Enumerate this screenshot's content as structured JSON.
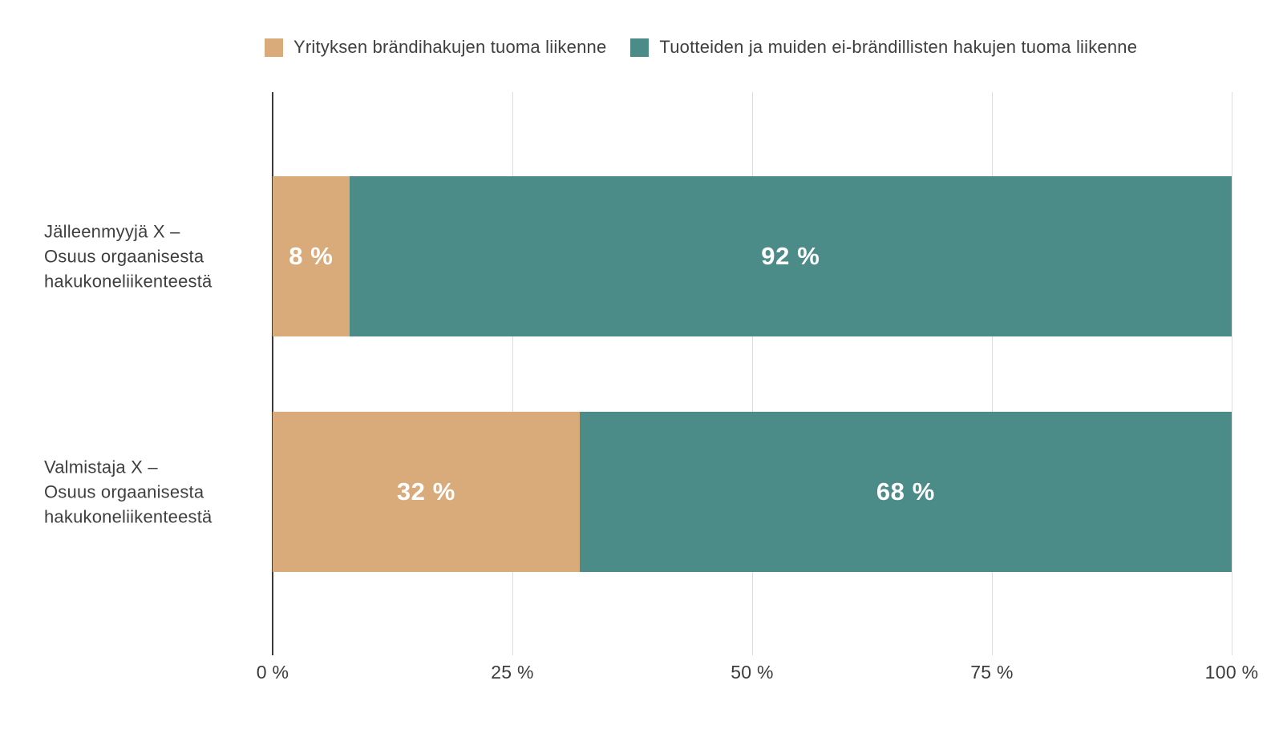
{
  "colors": {
    "background": "#ffffff",
    "brand_tan": "#d9ab7b",
    "brand_teal": "#4b8c89",
    "gridline": "#dcdcdc",
    "axis_line": "#3a3a3a",
    "label_text": "#3f3f3f",
    "value_label_text": "#ffffff"
  },
  "legend": {
    "items": [
      {
        "label": "Yrityksen brändihakujen tuoma liikenne",
        "color": "#d9ab7b",
        "swatch": "tan-swatch"
      },
      {
        "label": "Tuotteiden ja muiden ei-brändillisten hakujen tuoma liikenne",
        "color": "#4b8c89",
        "swatch": "teal-swatch"
      }
    ]
  },
  "chart_data": {
    "type": "bar",
    "orientation": "horizontal",
    "stacked": true,
    "title": "",
    "xlabel": "",
    "ylabel": "",
    "grid": true,
    "legend_position": "top",
    "categories": [
      "Jälleenmyyjä X –\nOsuus orgaanisesta\nhakukoneliikenteestä",
      "Valmistaja X –\nOsuus orgaanisesta\nhakukoneliikenteestä"
    ],
    "series": [
      {
        "name": "Yrityksen brändihakujen tuoma liikenne",
        "color": "#d9ab7b",
        "values": [
          8,
          32
        ]
      },
      {
        "name": "Tuotteiden ja muiden ei-brändillisten hakujen tuoma liikenne",
        "color": "#4b8c89",
        "values": [
          92,
          68
        ]
      }
    ],
    "value_labels": [
      [
        "8 %",
        "92 %"
      ],
      [
        "32 %",
        "68 %"
      ]
    ],
    "x_axis": {
      "range": [
        0,
        100
      ],
      "ticks": [
        {
          "value": 0,
          "label": "0 %"
        },
        {
          "value": 25,
          "label": "25 %"
        },
        {
          "value": 50,
          "label": "50 %"
        },
        {
          "value": 75,
          "label": "75 %"
        },
        {
          "value": 100,
          "label": "100 %"
        }
      ]
    }
  }
}
